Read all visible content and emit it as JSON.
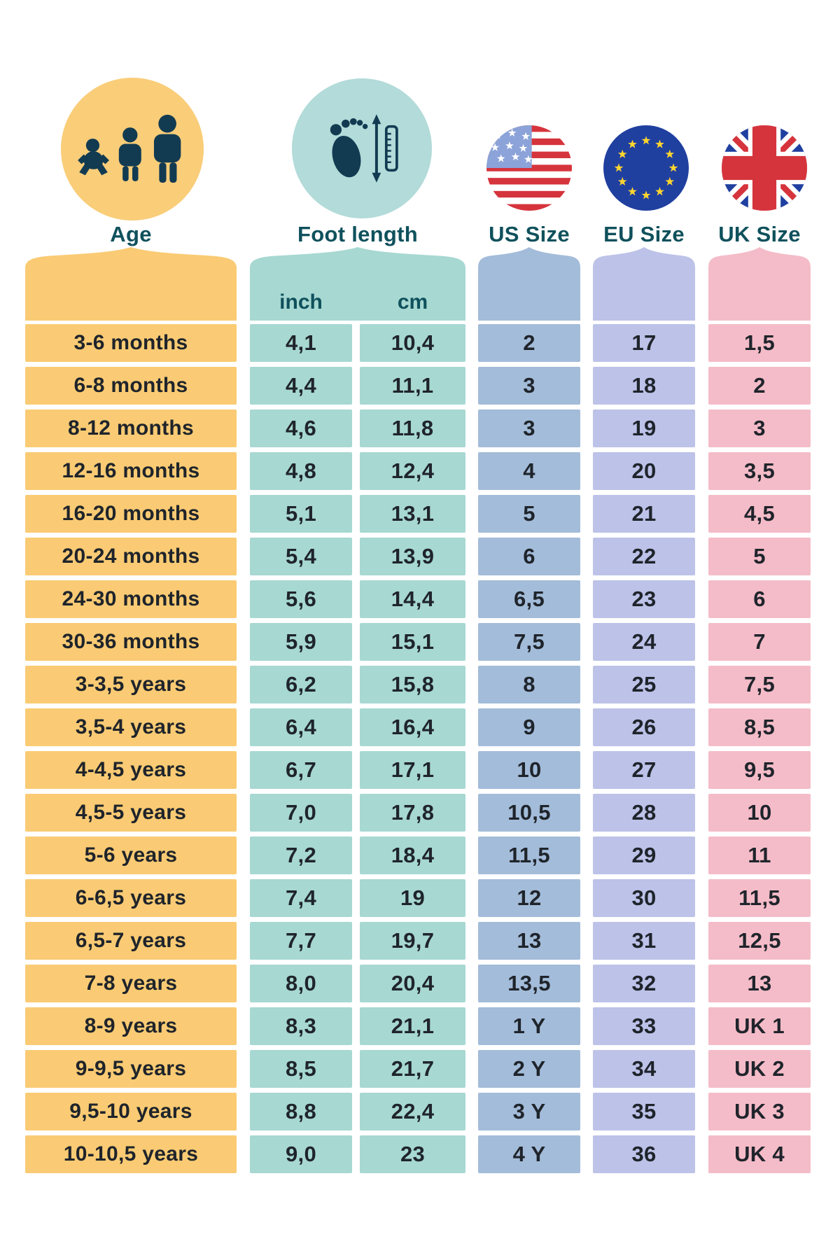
{
  "header": {
    "age_label": "Age",
    "foot_label": "Foot length",
    "inch_label": "inch",
    "cm_label": "cm",
    "us_label": "US Size",
    "eu_label": "EU Size",
    "uk_label": "UK Size"
  },
  "icons": {
    "age": "children-growth-icon",
    "foot": "footprint-measure-icon",
    "us": "usa-flag-icon",
    "eu": "eu-flag-icon",
    "uk": "uk-flag-icon"
  },
  "colors": {
    "age": "#FACB74",
    "age_circle": "#FACD79",
    "foot": "#A7D8D2",
    "foot_circle": "#B2DBD9",
    "us": "#A3BCD9",
    "eu": "#BCC2E8",
    "uk": "#F4BCC8",
    "head_text": "#0F515C",
    "cell_text": "#1F242B",
    "icon": "#123B52",
    "flag_red": "#D6343C",
    "flag_canton": "#8BA3D8",
    "flag_blue": "#2040A0",
    "flag_yellow": "#FFD52F"
  },
  "chart_data": {
    "type": "table",
    "columns": [
      "Age",
      "Foot length (inch)",
      "Foot length (cm)",
      "US Size",
      "EU Size",
      "UK Size"
    ],
    "rows": [
      [
        "3-6 months",
        "4,1",
        "10,4",
        "2",
        "17",
        "1,5"
      ],
      [
        "6-8 months",
        "4,4",
        "11,1",
        "3",
        "18",
        "2"
      ],
      [
        "8-12 months",
        "4,6",
        "11,8",
        "3",
        "19",
        "3"
      ],
      [
        "12-16 months",
        "4,8",
        "12,4",
        "4",
        "20",
        "3,5"
      ],
      [
        "16-20 months",
        "5,1",
        "13,1",
        "5",
        "21",
        "4,5"
      ],
      [
        "20-24 months",
        "5,4",
        "13,9",
        "6",
        "22",
        "5"
      ],
      [
        "24-30 months",
        "5,6",
        "14,4",
        "6,5",
        "23",
        "6"
      ],
      [
        "30-36 months",
        "5,9",
        "15,1",
        "7,5",
        "24",
        "7"
      ],
      [
        "3-3,5 years",
        "6,2",
        "15,8",
        "8",
        "25",
        "7,5"
      ],
      [
        "3,5-4 years",
        "6,4",
        "16,4",
        "9",
        "26",
        "8,5"
      ],
      [
        "4-4,5 years",
        "6,7",
        "17,1",
        "10",
        "27",
        "9,5"
      ],
      [
        "4,5-5 years",
        "7,0",
        "17,8",
        "10,5",
        "28",
        "10"
      ],
      [
        "5-6 years",
        "7,2",
        "18,4",
        "11,5",
        "29",
        "11"
      ],
      [
        "6-6,5 years",
        "7,4",
        "19",
        "12",
        "30",
        "11,5"
      ],
      [
        "6,5-7 years",
        "7,7",
        "19,7",
        "13",
        "31",
        "12,5"
      ],
      [
        "7-8 years",
        "8,0",
        "20,4",
        "13,5",
        "32",
        "13"
      ],
      [
        "8-9 years",
        "8,3",
        "21,1",
        "1 Y",
        "33",
        "UK 1"
      ],
      [
        "9-9,5 years",
        "8,5",
        "21,7",
        "2 Y",
        "34",
        "UK 2"
      ],
      [
        "9,5-10 years",
        "8,8",
        "22,4",
        "3 Y",
        "35",
        "UK 3"
      ],
      [
        "10-10,5 years",
        "9,0",
        "23",
        "4 Y",
        "36",
        "UK 4"
      ]
    ]
  }
}
